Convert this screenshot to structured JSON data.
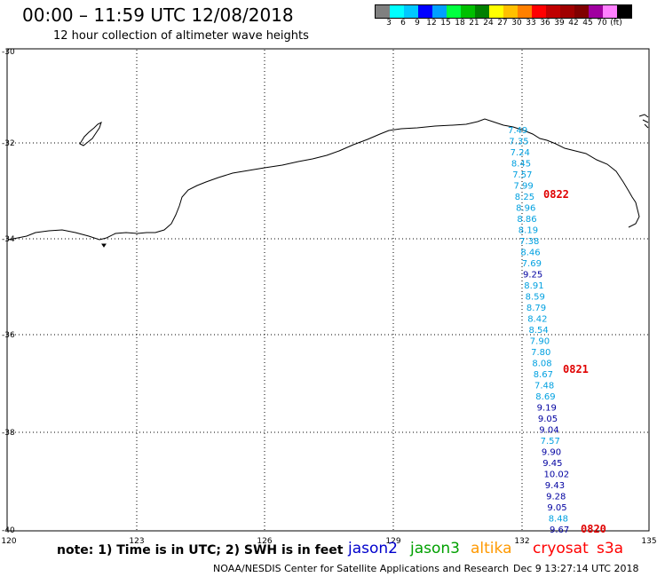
{
  "title": "00:00 – 11:59 UTC 12/08/2018",
  "subtitle": "12 hour collection of altimeter wave heights",
  "colorbar": {
    "colors": [
      "#808080",
      "#00ffff",
      "#00c8ff",
      "#0000ff",
      "#00a0ff",
      "#00ff40",
      "#00c000",
      "#008000",
      "#ffff00",
      "#ffc000",
      "#ff8000",
      "#ff0000",
      "#c00000",
      "#a00000",
      "#800000",
      "#a000a0",
      "#ff80ff",
      "#000000"
    ],
    "labels": [
      "3",
      "6",
      "9",
      "12",
      "15",
      "18",
      "21",
      "24",
      "27",
      "30",
      "33",
      "36",
      "39",
      "42",
      "45",
      "70",
      "(ft)"
    ]
  },
  "axes": {
    "lat_labels": [
      "-30",
      "-32",
      "-34",
      "-36",
      "-38",
      "-40"
    ],
    "lon_labels": [
      "120",
      "123",
      "126",
      "129",
      "132",
      "135"
    ]
  },
  "colors": {
    "jason2": "#0000cc",
    "jason3": "#00a000",
    "altika": "#ff9900",
    "cryosat": "#ff0000",
    "s3a": "#ff0000",
    "track_light": "#00a0e0",
    "track_dark": "#0000a0",
    "time_label": "#e00000"
  },
  "track": [
    {
      "v": "7.49",
      "c": "light"
    },
    {
      "v": "7.35",
      "c": "light"
    },
    {
      "v": "7.24",
      "c": "light"
    },
    {
      "v": "8.45",
      "c": "light"
    },
    {
      "v": "7.57",
      "c": "light"
    },
    {
      "v": "7.99",
      "c": "light"
    },
    {
      "v": "8.25",
      "c": "light"
    },
    {
      "v": "8.96",
      "c": "light"
    },
    {
      "v": "8.86",
      "c": "light"
    },
    {
      "v": "8.19",
      "c": "light"
    },
    {
      "v": "7.38",
      "c": "light"
    },
    {
      "v": "8.46",
      "c": "light"
    },
    {
      "v": "7.69",
      "c": "light"
    },
    {
      "v": "9.25",
      "c": "dark"
    },
    {
      "v": "8.91",
      "c": "light"
    },
    {
      "v": "8.59",
      "c": "light"
    },
    {
      "v": "8.79",
      "c": "light"
    },
    {
      "v": "8.42",
      "c": "light"
    },
    {
      "v": "8.54",
      "c": "light"
    },
    {
      "v": "7.90",
      "c": "light"
    },
    {
      "v": "7.80",
      "c": "light"
    },
    {
      "v": "8.08",
      "c": "light"
    },
    {
      "v": "8.67",
      "c": "light"
    },
    {
      "v": "7.48",
      "c": "light"
    },
    {
      "v": "8.69",
      "c": "light"
    },
    {
      "v": "9.19",
      "c": "dark"
    },
    {
      "v": "9.05",
      "c": "dark"
    },
    {
      "v": "9.04",
      "c": "dark"
    },
    {
      "v": "7.57",
      "c": "light"
    },
    {
      "v": "9.90",
      "c": "dark"
    },
    {
      "v": "9.45",
      "c": "dark"
    },
    {
      "v": "10.02",
      "c": "dark"
    },
    {
      "v": "9.43",
      "c": "dark"
    },
    {
      "v": "9.28",
      "c": "dark"
    },
    {
      "v": "9.05",
      "c": "dark"
    },
    {
      "v": "8.48",
      "c": "light"
    },
    {
      "v": "9.67",
      "c": "dark"
    }
  ],
  "time_labels": [
    "0822",
    "0821",
    "0820"
  ],
  "note": "note: 1) Time is in UTC; 2) SWH is in feet",
  "satellites": {
    "jason2": "jason2",
    "jason3": "jason3",
    "altika": "altika",
    "cryosat": "cryosat",
    "s3a": "s3a"
  },
  "credit": "NOAA/NESDIS Center for Satellite Applications and Research",
  "timestamp": "Dec  9 13:27:14 UTC 2018"
}
